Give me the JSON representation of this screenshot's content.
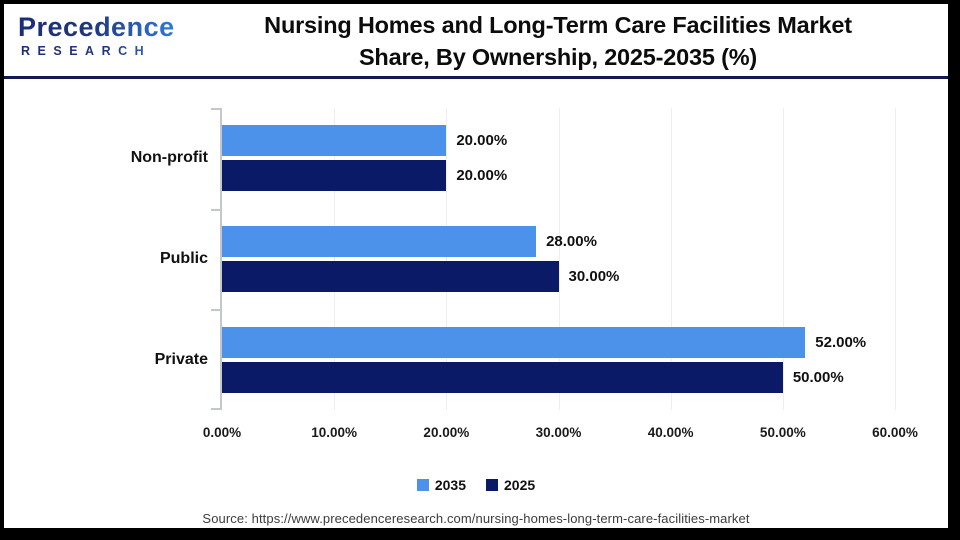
{
  "header": {
    "logo_line1": "Precedence",
    "logo_line2": "RESEARCH",
    "title_line1": "Nursing Homes and Long-Term Care Facilities Market",
    "title_line2": "Share, By Ownership, 2025-2035 (%)"
  },
  "chart_data": {
    "type": "bar",
    "orientation": "horizontal",
    "title": "Nursing Homes and Long-Term Care Facilities Market Share, By Ownership, 2025-2035 (%)",
    "categories": [
      "Non-profit",
      "Public",
      "Private"
    ],
    "series": [
      {
        "name": "2035",
        "color": "#4D92EA",
        "values": [
          20.0,
          28.0,
          52.0
        ],
        "labels": [
          "20.00%",
          "28.00%",
          "52.00%"
        ]
      },
      {
        "name": "2025",
        "color": "#0A1A66",
        "values": [
          20.0,
          30.0,
          50.0
        ],
        "labels": [
          "20.00%",
          "30.00%",
          "50.00%"
        ]
      }
    ],
    "xlabel": "",
    "ylabel": "",
    "xlim": [
      0,
      60
    ],
    "x_ticks": [
      "0.00%",
      "10.00%",
      "20.00%",
      "30.00%",
      "40.00%",
      "50.00%",
      "60.00%"
    ],
    "grid": true,
    "legend_position": "bottom"
  },
  "legend": [
    {
      "label": "2035",
      "color": "#4D92EA"
    },
    {
      "label": "2025",
      "color": "#0A1A66"
    }
  ],
  "source": "Source: https://www.precedenceresearch.com/nursing-homes-long-term-care-facilities-market",
  "colors": {
    "series_2035": "#4D92EA",
    "series_2025": "#0A1A66",
    "divider": "#131A4F",
    "axis": "#C4C7CB",
    "gridline": "#EDEEF0",
    "logo_dark": "#1B2D7A",
    "logo_light": "#2F7DE0"
  }
}
